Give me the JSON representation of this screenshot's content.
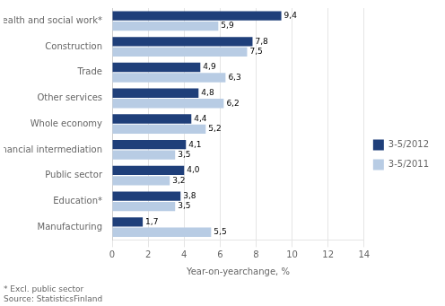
{
  "chart_data": {
    "type": "bar",
    "orientation": "horizontal",
    "categories": [
      "Health and social work*",
      "Construction",
      "Trade",
      "Other services",
      "Whole economy",
      "Financial intermediation",
      "Public sector",
      "Education*",
      "Manufacturing"
    ],
    "series": [
      {
        "name": "3-5/2012",
        "color": "#1F3F7A",
        "values": [
          9.4,
          7.8,
          4.9,
          4.8,
          4.4,
          4.1,
          4.0,
          3.8,
          1.7
        ],
        "value_labels": [
          "9,4",
          "7,8",
          "4,9",
          "4,8",
          "4,4",
          "4,1",
          "4,0",
          "3,8",
          "1,7"
        ]
      },
      {
        "name": "3-5/2011",
        "color": "#B8CCE4",
        "values": [
          5.9,
          7.5,
          6.3,
          6.2,
          5.2,
          3.5,
          3.2,
          3.5,
          5.5
        ],
        "value_labels": [
          "5,9",
          "7,5",
          "6,3",
          "6,2",
          "5,2",
          "3,5",
          "3,2",
          "3,5",
          "5,5"
        ]
      }
    ],
    "xlabel": "Year-on-yearchange, %",
    "xlim": [
      0,
      14
    ],
    "xticks": [
      0,
      2,
      4,
      6,
      8,
      10,
      12,
      14
    ],
    "grid": true,
    "legend": "right",
    "data_labels": true,
    "annotations": [
      "* Excl. public sector",
      "Source: StatisticsFinland"
    ]
  }
}
